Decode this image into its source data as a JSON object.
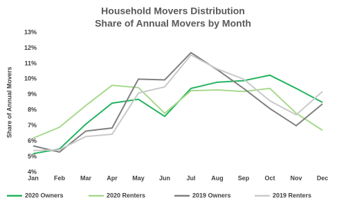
{
  "chart_data": {
    "type": "line",
    "title": "Household Movers Distribution",
    "subtitle": "Share of Annual Movers by Month",
    "y_label": "Share of Annual Movers",
    "categories": [
      "Jan",
      "Feb",
      "Mar",
      "Apr",
      "May",
      "Jun",
      "Jul",
      "Aug",
      "Sep",
      "Oct",
      "Nov",
      "Dec"
    ],
    "series": [
      {
        "name": "2020 Owners",
        "color": "#22b35e",
        "values": [
          5.2,
          5.5,
          7.1,
          8.45,
          8.7,
          7.6,
          9.4,
          9.8,
          9.9,
          10.25,
          9.4,
          8.5
        ]
      },
      {
        "name": "2020 Renters",
        "color": "#a6d98c",
        "values": [
          6.2,
          6.9,
          8.3,
          9.6,
          9.45,
          7.8,
          9.25,
          9.3,
          9.2,
          9.4,
          7.8,
          6.7
        ]
      },
      {
        "name": "2019 Owners",
        "color": "#7f7f7f",
        "values": [
          5.7,
          5.3,
          6.65,
          6.85,
          10.0,
          9.95,
          11.7,
          10.6,
          9.4,
          8.1,
          7.0,
          8.4
        ]
      },
      {
        "name": "2019 Renters",
        "color": "#c9c9c9",
        "values": [
          5.4,
          5.45,
          6.3,
          6.45,
          9.1,
          9.5,
          11.55,
          10.65,
          10.0,
          8.6,
          7.7,
          9.2
        ]
      }
    ],
    "ylim": [
      4,
      13
    ],
    "yticks": [
      {
        "value": 4,
        "label": "4%"
      },
      {
        "value": 5,
        "label": "5%"
      },
      {
        "value": 6,
        "label": "6%"
      },
      {
        "value": 7,
        "label": "7%"
      },
      {
        "value": 8,
        "label": "8%"
      },
      {
        "value": 9,
        "label": "9%"
      },
      {
        "value": 10,
        "label": "10%"
      },
      {
        "value": 11,
        "label": "11%"
      },
      {
        "value": 12,
        "label": "12%"
      },
      {
        "value": 13,
        "label": "13%"
      }
    ],
    "grid": false,
    "legend": "bottom"
  }
}
